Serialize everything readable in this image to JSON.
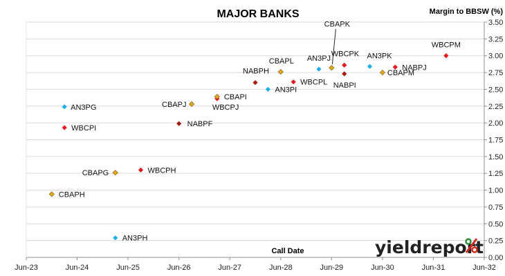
{
  "chart_data": {
    "type": "scatter",
    "title": "MAJOR BANKS",
    "xlabel": "Call Date",
    "ylabel": "Margin to BBSW (%)",
    "xlim": [
      "2023-06",
      "2032-06"
    ],
    "ylim": [
      0,
      3.5
    ],
    "x_ticks": [
      "Jun-23",
      "Jun-24",
      "Jun-25",
      "Jun-26",
      "Jun-27",
      "Jun-28",
      "Jun-29",
      "Jun-30",
      "Jun-31",
      "Jun-32"
    ],
    "y_ticks": [
      "0.00",
      "0.25",
      "0.50",
      "0.75",
      "1.00",
      "1.25",
      "1.50",
      "1.75",
      "2.00",
      "2.25",
      "2.50",
      "2.75",
      "3.00",
      "3.25",
      "3.50"
    ],
    "grid": "horizontal",
    "series": [
      {
        "color": "#1fb0e6",
        "marker": "diamond",
        "points": [
          {
            "label": "AN3PG",
            "x": "2024-03",
            "y": 2.24
          },
          {
            "label": "AN3PH",
            "x": "2025-03",
            "y": 0.29
          },
          {
            "label": "AN3PI",
            "x": "2028-03",
            "y": 2.5
          },
          {
            "label": "AN3PJ",
            "x": "2029-03",
            "y": 2.8
          },
          {
            "label": "AN3PK",
            "x": "2030-03",
            "y": 2.84
          }
        ]
      },
      {
        "color": "#e8191e",
        "marker": "diamond",
        "points": [
          {
            "label": "WBCPI",
            "x": "2024-03",
            "y": 1.93
          },
          {
            "label": "WBCPH",
            "x": "2025-09",
            "y": 1.3
          },
          {
            "label": "WBCPJ",
            "x": "2027-03",
            "y": 2.36
          },
          {
            "label": "WBCPL",
            "x": "2028-09",
            "y": 2.61
          },
          {
            "label": "WBCPK",
            "x": "2029-09",
            "y": 2.86
          },
          {
            "label": "NABPJ",
            "x": "2030-09",
            "y": 2.83
          },
          {
            "label": "WBCPM",
            "x": "2031-09",
            "y": 3.0
          }
        ]
      },
      {
        "color": "#a51c14",
        "marker": "diamond",
        "points": [
          {
            "label": "NABPF",
            "x": "2026-06",
            "y": 1.99
          },
          {
            "label": "NABPH",
            "x": "2027-12",
            "y": 2.6
          },
          {
            "label": "NABPI",
            "x": "2029-09",
            "y": 2.73
          }
        ]
      },
      {
        "color": "#e8a917",
        "marker": "diamond",
        "points": [
          {
            "label": "CBAPH",
            "x": "2023-12",
            "y": 0.94
          },
          {
            "label": "CBAPG",
            "x": "2025-03",
            "y": 1.26
          },
          {
            "label": "CBAPJ",
            "x": "2026-09",
            "y": 2.28
          },
          {
            "label": "CBAPI",
            "x": "2027-03",
            "y": 2.39
          },
          {
            "label": "CBAPL",
            "x": "2028-06",
            "y": 2.76
          },
          {
            "label": "CBAPK",
            "x": "2029-06",
            "y": 2.82
          },
          {
            "label": "CBAPM",
            "x": "2030-06",
            "y": 2.75
          }
        ]
      }
    ]
  },
  "branding": {
    "logo_text": "yieldreport",
    "logo_symbol": "%"
  },
  "colors": {
    "logo_green": "#2e8b3a",
    "logo_red": "#d2281e",
    "grid": "#d9d9d9",
    "axis": "#8c8c8c"
  }
}
